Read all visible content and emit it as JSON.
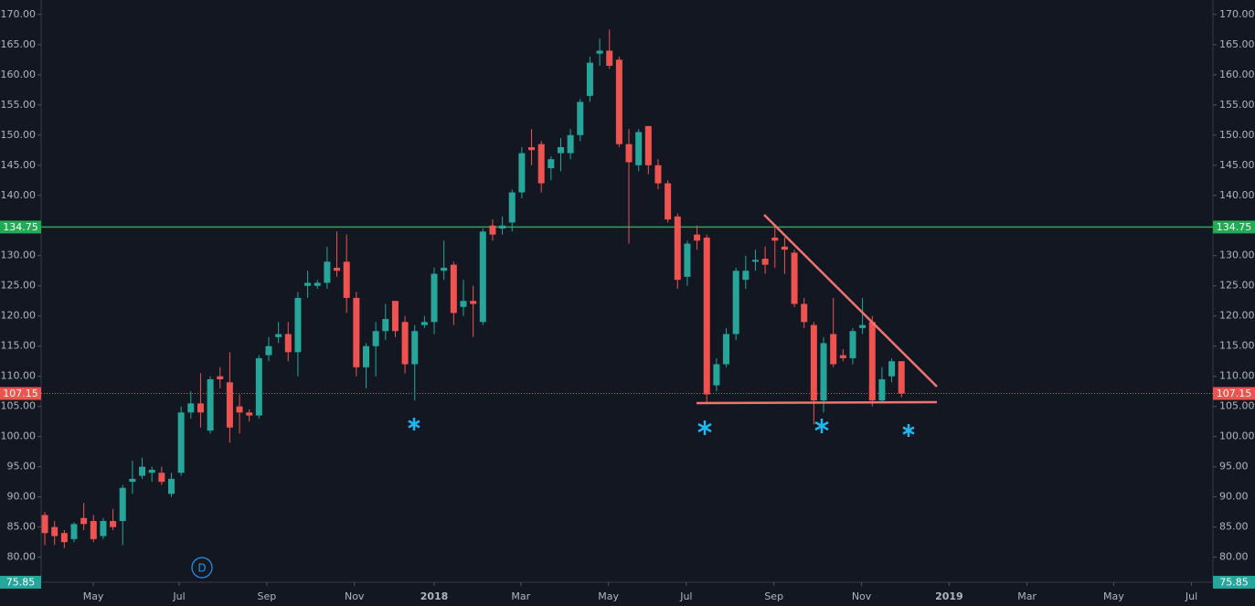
{
  "chart_data": {
    "type": "candlestick",
    "up_color": "#26a69a",
    "down_color": "#ef5350",
    "open": [
      87,
      85,
      84,
      83,
      86.5,
      86,
      83.5,
      86,
      86,
      92.5,
      93.5,
      94,
      94,
      90.5,
      94,
      104,
      105.5,
      101,
      110,
      109,
      105,
      104,
      103.5,
      113.5,
      116.5,
      117,
      114,
      125,
      125,
      125.5,
      128,
      129,
      123,
      111.5,
      115,
      117.5,
      122.5,
      119,
      112,
      118.5,
      119,
      127.5,
      128.5,
      121.5,
      122.5,
      119,
      135,
      134.5,
      135.5,
      140.5,
      148,
      148.5,
      144.5,
      147,
      147,
      150,
      156.5,
      163.5,
      164,
      162.5,
      148.5,
      145,
      151.5,
      145,
      142,
      136.5,
      126.5,
      133.5,
      133,
      108.5,
      112,
      117,
      126,
      129,
      129.5,
      133,
      131.5,
      130.5,
      122,
      118.5,
      106,
      117,
      113.5,
      113,
      118,
      119,
      106,
      110,
      112.5
    ],
    "high": [
      87.5,
      86,
      84.5,
      85.8,
      89,
      87,
      86.5,
      88,
      92,
      96,
      96.5,
      95,
      95,
      94,
      105,
      107.5,
      110.5,
      110,
      111.5,
      114,
      107,
      104.5,
      113.5,
      116.5,
      119,
      119,
      124,
      127.5,
      126,
      131.5,
      134,
      133.5,
      124,
      115.5,
      119,
      122,
      122.5,
      120,
      118.5,
      120,
      128,
      132.5,
      129,
      126,
      125,
      134.5,
      136,
      136.5,
      141,
      148,
      151,
      149,
      146.5,
      149.5,
      151,
      156,
      163,
      166,
      167.5,
      163,
      151,
      151,
      151.5,
      146,
      142.5,
      137,
      132.5,
      135,
      133.5,
      113,
      118,
      128,
      130,
      131,
      131.5,
      135,
      133,
      131,
      123,
      119,
      116.5,
      123,
      114.5,
      118,
      123,
      120,
      111.5,
      113,
      112.5
    ],
    "low": [
      82,
      82,
      81.5,
      82.5,
      84.5,
      82.5,
      83,
      84.5,
      82,
      90.5,
      93,
      92.5,
      92,
      90,
      93.5,
      103,
      101.5,
      100.5,
      108,
      99,
      100.5,
      102.5,
      103,
      112.5,
      115.5,
      112.5,
      110,
      123,
      124.5,
      124.5,
      126.5,
      120.5,
      110,
      108,
      110,
      116,
      116.5,
      110.5,
      106,
      118,
      117,
      126,
      118.5,
      120,
      116.5,
      118.5,
      132.5,
      133.5,
      134,
      139.5,
      145,
      140.5,
      142.5,
      144,
      146,
      149,
      155.5,
      161.5,
      161,
      148,
      132,
      144,
      143.5,
      141,
      135.5,
      124.5,
      125,
      131,
      105.5,
      107.5,
      111.5,
      116,
      124.5,
      127.5,
      127,
      128,
      127,
      121.5,
      118,
      102,
      104,
      111.5,
      112.5,
      112,
      117,
      105,
      105.5,
      109,
      106.5
    ],
    "close": [
      84,
      83.5,
      82.5,
      85.5,
      85.5,
      83,
      86,
      85,
      91.5,
      93,
      95,
      94.5,
      92.5,
      93,
      104,
      105.5,
      104,
      109.5,
      109.5,
      101.5,
      104,
      103.5,
      113,
      115,
      117,
      114,
      123,
      125.5,
      125.5,
      129,
      127.5,
      123,
      111.5,
      115,
      117.5,
      119.5,
      117.5,
      112,
      117.5,
      119,
      127,
      128,
      120.5,
      122.5,
      122,
      134,
      133.5,
      135,
      140.5,
      147,
      147.5,
      142,
      146,
      148,
      150,
      155.5,
      162,
      164,
      161.5,
      148.5,
      145.5,
      150.5,
      145,
      142,
      136,
      126,
      132,
      132.5,
      107,
      112,
      117,
      127.5,
      127.5,
      129.3,
      128.5,
      132.5,
      131,
      122,
      119,
      106,
      115.5,
      112,
      113,
      117.5,
      118.5,
      106,
      109.5,
      112.5,
      107.15
    ],
    "ylim": [
      75.85,
      172.4
    ],
    "yticks": [
      {
        "value": 80,
        "label": "80.00"
      },
      {
        "value": 85,
        "label": "85.00"
      },
      {
        "value": 90,
        "label": "90.00"
      },
      {
        "value": 95,
        "label": "95.00"
      },
      {
        "value": 100,
        "label": "100.00"
      },
      {
        "value": 105,
        "label": "105.00"
      },
      {
        "value": 110,
        "label": "110.00"
      },
      {
        "value": 115,
        "label": "115.00"
      },
      {
        "value": 120,
        "label": "120.00"
      },
      {
        "value": 125,
        "label": "125.00"
      },
      {
        "value": 130,
        "label": "130.00"
      },
      {
        "value": 135,
        "label": "135.00"
      },
      {
        "value": 140,
        "label": "140.00"
      },
      {
        "value": 145,
        "label": "145.00"
      },
      {
        "value": 150,
        "label": "150.00"
      },
      {
        "value": 155,
        "label": "155.00"
      },
      {
        "value": 160,
        "label": "160.00"
      },
      {
        "value": 165,
        "label": "165.00"
      },
      {
        "value": 170,
        "label": "170.00"
      }
    ],
    "xlim": [
      -0.38,
      120
    ],
    "xticks": [
      {
        "value": 4.98,
        "label": "May"
      },
      {
        "value": 13.8,
        "label": "Jul"
      },
      {
        "value": 22.8,
        "label": "Sep"
      },
      {
        "value": 31.8,
        "label": "Nov"
      },
      {
        "value": 40,
        "label": "2018"
      },
      {
        "value": 48.9,
        "label": "Mar"
      },
      {
        "value": 57.9,
        "label": "May"
      },
      {
        "value": 65.9,
        "label": "Jul"
      },
      {
        "value": 74.9,
        "label": "Sep"
      },
      {
        "value": 83.9,
        "label": "Nov"
      },
      {
        "value": 92.9,
        "label": "2019"
      },
      {
        "value": 100.9,
        "label": "Mar"
      },
      {
        "value": 109.8,
        "label": "May"
      },
      {
        "value": 117.8,
        "label": "Jul"
      }
    ],
    "price_lines": [
      {
        "value": 134.75,
        "color": "#22ab52",
        "style": "solid"
      },
      {
        "value": 107.15,
        "color": "#ef5350",
        "style": "dotted"
      },
      {
        "value": 75.85,
        "color": "#26a69a",
        "style": "none"
      }
    ],
    "interval_badge": "D"
  }
}
